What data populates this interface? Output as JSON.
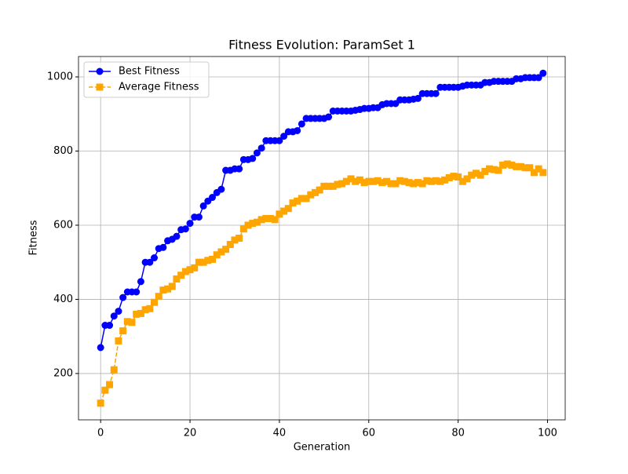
{
  "chart_data": {
    "type": "line",
    "title": "Fitness Evolution: ParamSet 1",
    "x_label": "Generation",
    "y_label": "Fitness",
    "x": [
      0,
      1,
      2,
      3,
      4,
      5,
      6,
      7,
      8,
      9,
      10,
      11,
      12,
      13,
      14,
      15,
      16,
      17,
      18,
      19,
      20,
      21,
      22,
      23,
      24,
      25,
      26,
      27,
      28,
      29,
      30,
      31,
      32,
      33,
      34,
      35,
      36,
      37,
      38,
      39,
      40,
      41,
      42,
      43,
      44,
      45,
      46,
      47,
      48,
      49,
      50,
      51,
      52,
      53,
      54,
      55,
      56,
      57,
      58,
      59,
      60,
      61,
      62,
      63,
      64,
      65,
      66,
      67,
      68,
      69,
      70,
      71,
      72,
      73,
      74,
      75,
      76,
      77,
      78,
      79,
      80,
      81,
      82,
      83,
      84,
      85,
      86,
      87,
      88,
      89,
      90,
      91,
      92,
      93,
      94,
      95,
      96,
      97,
      98,
      99
    ],
    "series": [
      {
        "name": "Best Fitness",
        "color": "#0000ff",
        "marker": "circle",
        "linestyle": "solid",
        "values": [
          270,
          330,
          330,
          355,
          368,
          405,
          420,
          420,
          420,
          448,
          500,
          500,
          512,
          537,
          540,
          558,
          562,
          570,
          588,
          590,
          605,
          622,
          622,
          652,
          665,
          675,
          688,
          697,
          748,
          748,
          752,
          752,
          777,
          777,
          780,
          795,
          808,
          828,
          828,
          828,
          828,
          840,
          852,
          852,
          855,
          873,
          888,
          888,
          888,
          888,
          888,
          892,
          908,
          908,
          908,
          908,
          908,
          910,
          912,
          915,
          915,
          917,
          917,
          925,
          928,
          928,
          928,
          938,
          938,
          938,
          940,
          942,
          955,
          955,
          955,
          955,
          972,
          972,
          972,
          972,
          972,
          975,
          978,
          978,
          978,
          978,
          985,
          985,
          988,
          988,
          988,
          988,
          988,
          995,
          995,
          998,
          998,
          998,
          998,
          1010
        ]
      },
      {
        "name": "Average Fitness",
        "color": "#ffa500",
        "marker": "square",
        "linestyle": "dashed",
        "values": [
          120,
          155,
          170,
          210,
          288,
          315,
          340,
          338,
          360,
          362,
          372,
          375,
          392,
          408,
          425,
          428,
          435,
          455,
          465,
          475,
          480,
          485,
          500,
          500,
          505,
          508,
          520,
          528,
          535,
          548,
          560,
          565,
          590,
          600,
          605,
          608,
          615,
          618,
          618,
          615,
          630,
          638,
          645,
          660,
          665,
          672,
          672,
          682,
          688,
          695,
          705,
          705,
          705,
          710,
          712,
          718,
          725,
          718,
          722,
          715,
          718,
          718,
          720,
          715,
          718,
          712,
          712,
          720,
          718,
          715,
          712,
          715,
          712,
          720,
          718,
          720,
          718,
          722,
          728,
          732,
          730,
          718,
          725,
          735,
          740,
          735,
          745,
          752,
          750,
          748,
          762,
          765,
          762,
          758,
          758,
          755,
          755,
          742,
          752,
          742
        ]
      }
    ],
    "xlim": [
      -4.95,
      103.95
    ],
    "ylim": [
      75,
      1055
    ],
    "xticks": [
      0,
      20,
      40,
      60,
      80,
      100
    ],
    "yticks": [
      200,
      400,
      600,
      800,
      1000
    ],
    "grid": true,
    "legend": "upper-left"
  }
}
